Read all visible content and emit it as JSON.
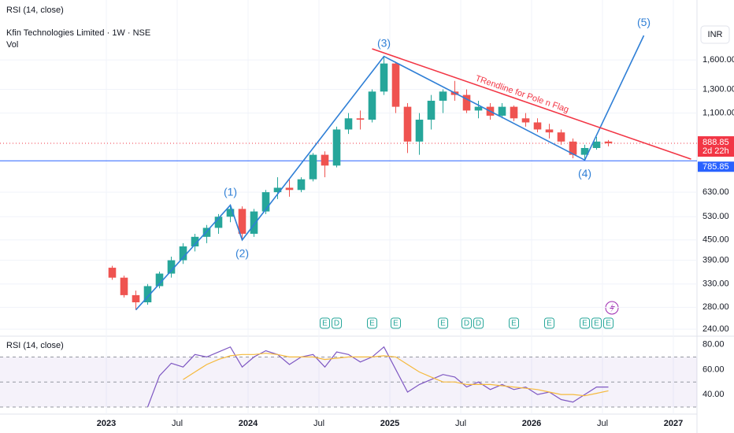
{
  "chart_data": [
    {
      "type": "candlestick",
      "header": "RSI (14, close)",
      "title": "Kfin Technologies Limited · 1W · NSE",
      "volume_label": "Vol",
      "currency": "INR",
      "x": [
        "2023-01",
        "2023-02",
        "2023-03",
        "2023-04",
        "2023-05",
        "2023-06",
        "2023-07",
        "2023-08",
        "2023-09",
        "2023-10",
        "2023-11",
        "2023-12",
        "2024-01",
        "2024-02",
        "2024-03",
        "2024-04",
        "2024-05",
        "2024-06",
        "2024-07",
        "2024-08",
        "2024-09",
        "2024-10",
        "2024-11",
        "2024-12",
        "2025-01",
        "2025-02",
        "2025-03",
        "2025-04",
        "2025-05",
        "2025-06",
        "2025-07",
        "2025-08",
        "2025-09",
        "2025-10",
        "2025-11",
        "2025-12",
        "2026-01",
        "2026-02",
        "2026-03",
        "2026-04",
        "2026-05",
        "2026-06",
        "2026-07"
      ],
      "open": [
        370,
        345,
        305,
        290,
        325,
        355,
        390,
        430,
        460,
        490,
        530,
        560,
        470,
        550,
        630,
        650,
        640,
        690,
        820,
        760,
        980,
        1060,
        1050,
        1280,
        1560,
        1150,
        900,
        1050,
        1200,
        1280,
        1250,
        1120,
        1150,
        1080,
        1150,
        1060,
        1030,
        980,
        960,
        900,
        820,
        860,
        900
      ],
      "high": [
        375,
        350,
        315,
        330,
        360,
        400,
        440,
        470,
        500,
        540,
        575,
        570,
        560,
        640,
        700,
        690,
        700,
        830,
        840,
        1000,
        1100,
        1120,
        1300,
        1640,
        1580,
        1180,
        1100,
        1250,
        1300,
        1380,
        1300,
        1200,
        1180,
        1180,
        1160,
        1100,
        1060,
        1020,
        980,
        920,
        880,
        930,
        910
      ],
      "low": [
        340,
        300,
        275,
        285,
        320,
        345,
        380,
        415,
        440,
        470,
        510,
        450,
        460,
        540,
        600,
        610,
        630,
        680,
        700,
        750,
        950,
        980,
        1030,
        1250,
        1100,
        830,
        820,
        980,
        1100,
        1200,
        1100,
        1060,
        1050,
        1060,
        1040,
        1000,
        960,
        920,
        880,
        800,
        790,
        850,
        870
      ],
      "close": [
        345,
        305,
        290,
        325,
        355,
        390,
        430,
        460,
        490,
        530,
        560,
        470,
        550,
        630,
        650,
        640,
        690,
        820,
        760,
        980,
        1060,
        1050,
        1280,
        1560,
        1150,
        900,
        1050,
        1200,
        1280,
        1250,
        1120,
        1150,
        1080,
        1150,
        1060,
        1030,
        980,
        960,
        900,
        820,
        860,
        900,
        888.85
      ],
      "up_color": "#26a69a",
      "down_color": "#ef5350",
      "xlim": [
        "2022-04",
        "2027-03"
      ],
      "ylim": [
        231,
        2440
      ],
      "log_scale": true,
      "grid": true,
      "yticks": [
        {
          "value": 240,
          "label": "240.00"
        },
        {
          "value": 280,
          "label": "280.00"
        },
        {
          "value": 330,
          "label": "330.00"
        },
        {
          "value": 390,
          "label": "390.00"
        },
        {
          "value": 450,
          "label": "450.00"
        },
        {
          "value": 530,
          "label": "530.00"
        },
        {
          "value": 630,
          "label": "630.00"
        },
        {
          "value": 1100,
          "label": "1,100.00"
        },
        {
          "value": 1300,
          "label": "1,300.00"
        },
        {
          "value": 1600,
          "label": "1,600.00"
        }
      ],
      "waves": {
        "color": "#2f7fd6",
        "labels": [
          null,
          "(1)",
          "(2)",
          "(3)",
          "(4)",
          "(5)"
        ],
        "x": [
          "2023-03",
          "2023-11",
          "2023-12",
          "2024-12",
          "2026-05",
          "2026-10"
        ],
        "y": [
          275,
          575,
          450,
          1640,
          790,
          1900
        ]
      },
      "trendline": {
        "label": "TRendline for Pole n Flag",
        "color": "#f23645",
        "x": [
          "2024-11",
          "2027-02"
        ],
        "y": [
          1730,
          795
        ]
      },
      "level": {
        "value": 785.85,
        "label": "785.85",
        "color": "#2962ff"
      },
      "last_price": {
        "value": 888.85,
        "label": "888.85",
        "color": "#f23645"
      },
      "countdown": "2d 22h",
      "events": [
        {
          "x": "2024-07",
          "label": "E"
        },
        {
          "x": "2024-08",
          "label": "D"
        },
        {
          "x": "2024-11",
          "label": "E"
        },
        {
          "x": "2025-01",
          "label": "E"
        },
        {
          "x": "2025-05",
          "label": "E"
        },
        {
          "x": "2025-07",
          "label": "D"
        },
        {
          "x": "2025-08",
          "label": "D"
        },
        {
          "x": "2025-11",
          "label": "E"
        },
        {
          "x": "2026-02",
          "label": "E"
        },
        {
          "x": "2026-05",
          "label": "E"
        },
        {
          "x": "2026-06",
          "label": "E"
        },
        {
          "x": "2026-07",
          "label": "E"
        }
      ]
    },
    {
      "type": "line",
      "title": "RSI (14, close)",
      "x": [
        "2023-01",
        "2023-02",
        "2023-03",
        "2023-04",
        "2023-05",
        "2023-06",
        "2023-07",
        "2023-08",
        "2023-09",
        "2023-10",
        "2023-11",
        "2023-12",
        "2024-01",
        "2024-02",
        "2024-03",
        "2024-04",
        "2024-05",
        "2024-06",
        "2024-07",
        "2024-08",
        "2024-09",
        "2024-10",
        "2024-11",
        "2024-12",
        "2025-01",
        "2025-02",
        "2025-03",
        "2025-04",
        "2025-05",
        "2025-06",
        "2025-07",
        "2025-08",
        "2025-09",
        "2025-10",
        "2025-11",
        "2025-12",
        "2026-01",
        "2026-02",
        "2026-03",
        "2026-04",
        "2026-05",
        "2026-06",
        "2026-07"
      ],
      "series": [
        {
          "color": "#7e57c2",
          "values": [
            null,
            null,
            null,
            30,
            55,
            65,
            62,
            72,
            70,
            74,
            78,
            62,
            70,
            75,
            72,
            64,
            70,
            72,
            62,
            74,
            72,
            66,
            70,
            78,
            60,
            42,
            48,
            52,
            56,
            54,
            46,
            50,
            44,
            48,
            44,
            46,
            40,
            42,
            36,
            34,
            40,
            46,
            46
          ]
        },
        {
          "color": "#f5b93c",
          "values": [
            null,
            null,
            null,
            null,
            null,
            null,
            52,
            58,
            64,
            68,
            71,
            72,
            72,
            73,
            72,
            70,
            70,
            70,
            68,
            69,
            70,
            70,
            70,
            71,
            70,
            64,
            58,
            54,
            50,
            50,
            48,
            48,
            48,
            47,
            46,
            45,
            44,
            42,
            40,
            40,
            39,
            41,
            43
          ]
        }
      ],
      "xlim": [
        "2022-04",
        "2027-03"
      ],
      "ylim": [
        25,
        86
      ],
      "yticks": [
        {
          "value": 40,
          "label": "40.00"
        },
        {
          "value": 60,
          "label": "60.00"
        },
        {
          "value": 80,
          "label": "80.00"
        }
      ],
      "levels": [
        30,
        50,
        70
      ],
      "band_color": "#7e57c2",
      "xticks": [
        {
          "value": "2023-01",
          "label": "2023"
        },
        {
          "value": "2023-07",
          "label": "Jul"
        },
        {
          "value": "2024-01",
          "label": "2024"
        },
        {
          "value": "2024-07",
          "label": "Jul"
        },
        {
          "value": "2025-01",
          "label": "2025"
        },
        {
          "value": "2025-07",
          "label": "Jul"
        },
        {
          "value": "2026-01",
          "label": "2026"
        },
        {
          "value": "2026-07",
          "label": "Jul"
        },
        {
          "value": "2027-01",
          "label": "2027"
        }
      ]
    }
  ]
}
